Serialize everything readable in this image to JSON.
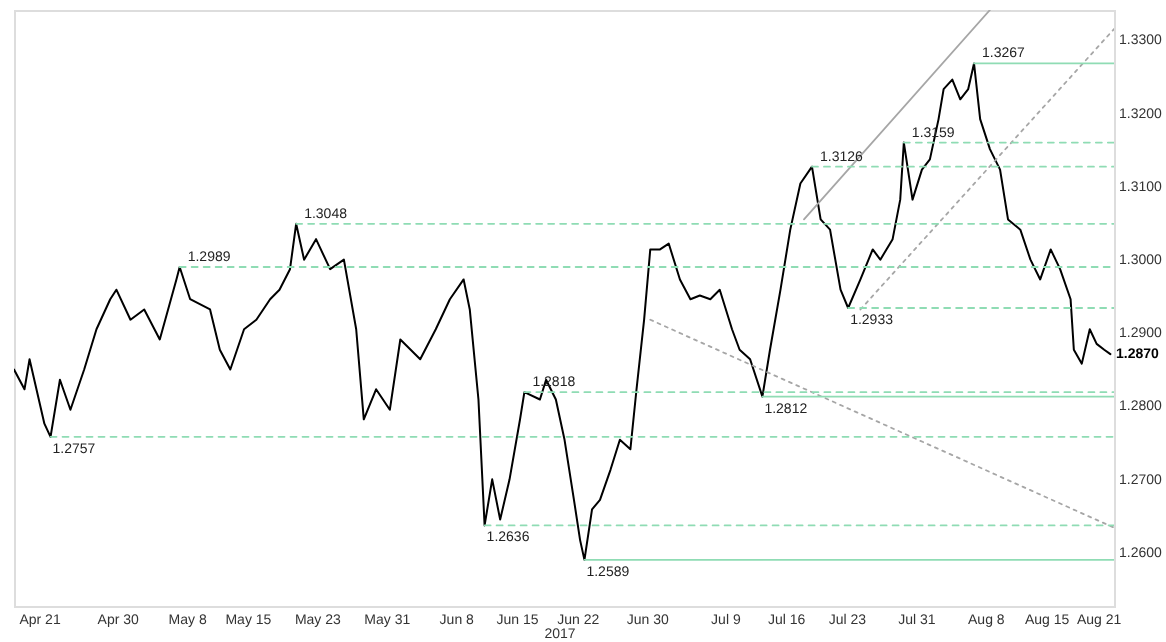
{
  "chart_data": {
    "type": "line",
    "xlim": [
      "2017-04-18T00:00",
      "2017-08-22T17:00"
    ],
    "xticks": [
      {
        "value": "2017-04-21",
        "label": "Apr 21"
      },
      {
        "value": "2017-04-30",
        "label": "Apr 30"
      },
      {
        "value": "2017-05-08",
        "label": "May 8"
      },
      {
        "value": "2017-05-15",
        "label": "May 15"
      },
      {
        "value": "2017-05-23",
        "label": "May 23"
      },
      {
        "value": "2017-05-31",
        "label": "May 31"
      },
      {
        "value": "2017-06-08",
        "label": "Jun 8"
      },
      {
        "value": "2017-06-15",
        "label": "Jun 15"
      },
      {
        "value": "2017-06-22",
        "label": "Jun 22"
      },
      {
        "value": "2017-06-30",
        "label": "Jun 30"
      },
      {
        "value": "2017-07-09",
        "label": "Jul 9"
      },
      {
        "value": "2017-07-16",
        "label": "Jul 16"
      },
      {
        "value": "2017-07-23",
        "label": "Jul 23"
      },
      {
        "value": "2017-07-31",
        "label": "Jul 31"
      },
      {
        "value": "2017-08-08",
        "label": "Aug 8"
      },
      {
        "value": "2017-08-15",
        "label": "Aug 15"
      },
      {
        "value": "2017-08-21",
        "label": "Aug 21"
      }
    ],
    "ylim": [
      1.2526,
      1.334
    ],
    "yticks": [
      {
        "value": 1.26,
        "label": "1.2600"
      },
      {
        "value": 1.27,
        "label": "1.2700"
      },
      {
        "value": 1.28,
        "label": "1.2800"
      },
      {
        "value": 1.29,
        "label": "1.2900"
      },
      {
        "value": 1.3,
        "label": "1.3000"
      },
      {
        "value": 1.31,
        "label": "1.3100"
      },
      {
        "value": 1.32,
        "label": "1.3200"
      },
      {
        "value": 1.33,
        "label": "1.3300"
      }
    ],
    "grid": false,
    "series": [
      {
        "color": "#000000",
        "line_style": "solid",
        "x": [
          "2017-04-18T00:00",
          "2017-04-19T05:00",
          "2017-04-19T19:00",
          "2017-04-21T12:00",
          "2017-04-22T05:00",
          "2017-04-23T07:00",
          "2017-04-24T12:00",
          "2017-04-26T02:00",
          "2017-04-27T12:00",
          "2017-04-29T02:00",
          "2017-04-29T19:00",
          "2017-05-01T10:00",
          "2017-05-03T00:00",
          "2017-05-04T19:00",
          "2017-05-06T17:00",
          "2017-05-07T02:00",
          "2017-05-08T07:00",
          "2017-05-10T14:00",
          "2017-05-11T17:00",
          "2017-05-12T22:00",
          "2017-05-14T12:00",
          "2017-05-15T22:00",
          "2017-05-17T12:00",
          "2017-05-18T14:00",
          "2017-05-19T19:00",
          "2017-05-20T12:00",
          "2017-05-21T10:00",
          "2017-05-22T19:00",
          "2017-05-24T10:00",
          "2017-05-26T00:00",
          "2017-05-27T10:00",
          "2017-05-28T07:00",
          "2017-05-29T17:00",
          "2017-05-31T07:00",
          "2017-06-01T12:00",
          "2017-06-03T19:00",
          "2017-06-05T14:00",
          "2017-06-07T05:00",
          "2017-06-08T19:00",
          "2017-06-09T12:00",
          "2017-06-10T12:00",
          "2017-06-11T05:00",
          "2017-06-12T02:00",
          "2017-06-13T00:00",
          "2017-06-14T02:00",
          "2017-06-15T07:00",
          "2017-06-15T19:00",
          "2017-06-17T14:00",
          "2017-06-18T07:00",
          "2017-06-19T10:00",
          "2017-06-20T10:00",
          "2017-06-21T12:00",
          "2017-06-22T05:00",
          "2017-06-22T17:00",
          "2017-06-23T14:00",
          "2017-06-24T12:00",
          "2017-06-25T17:00",
          "2017-06-26T19:00",
          "2017-06-28T00:00",
          "2017-06-28T17:00",
          "2017-06-29T14:00",
          "2017-06-30T07:00",
          "2017-07-01T10:00",
          "2017-07-02T10:00",
          "2017-07-03T17:00",
          "2017-07-04T22:00",
          "2017-07-06T00:00",
          "2017-07-07T05:00",
          "2017-07-08T07:00",
          "2017-07-09T17:00",
          "2017-07-10T14:00",
          "2017-07-11T19:00",
          "2017-07-13T05:00",
          "2017-07-14T02:00",
          "2017-07-15T07:00",
          "2017-07-16T10:00",
          "2017-07-17T14:00",
          "2017-07-18T22:00",
          "2017-07-19T22:00",
          "2017-07-21T00:00",
          "2017-07-22T05:00",
          "2017-07-23T02:00",
          "2017-07-24T12:00",
          "2017-07-25T22:00",
          "2017-07-26T19:00",
          "2017-07-28T05:00",
          "2017-07-29T02:00",
          "2017-07-29T12:00",
          "2017-07-30T12:00",
          "2017-07-31T14:00",
          "2017-08-01T12:00",
          "2017-08-02T12:00",
          "2017-08-03T02:00",
          "2017-08-04T02:00",
          "2017-08-05T00:00",
          "2017-08-05T22:00",
          "2017-08-06T14:00",
          "2017-08-07T07:00",
          "2017-08-08T10:00",
          "2017-08-09T14:00",
          "2017-08-10T12:00",
          "2017-08-11T22:00",
          "2017-08-13T02:00",
          "2017-08-14T05:00",
          "2017-08-15T10:00",
          "2017-08-16T12:00",
          "2017-08-17T17:00",
          "2017-08-18T02:00",
          "2017-08-19T00:00",
          "2017-08-19T22:00",
          "2017-08-20T17:00",
          "2017-08-21T14:00",
          "2017-08-22T07:00"
        ],
        "values": [
          1.2849,
          1.2822,
          1.2863,
          1.2775,
          1.2757,
          1.2835,
          1.2794,
          1.2849,
          1.2904,
          1.2945,
          1.2958,
          1.2917,
          1.2931,
          1.289,
          1.2972,
          1.2989,
          1.2945,
          1.2931,
          1.2876,
          1.2849,
          1.2904,
          1.2917,
          1.2945,
          1.2958,
          1.2986,
          1.3048,
          1.2999,
          1.3027,
          1.2986,
          1.2999,
          1.2904,
          1.2781,
          1.2822,
          1.2794,
          1.289,
          1.2863,
          1.2904,
          1.2945,
          1.2972,
          1.2931,
          1.2808,
          1.2636,
          1.2699,
          1.2644,
          1.2699,
          1.2781,
          1.2818,
          1.2808,
          1.2835,
          1.2808,
          1.2753,
          1.2671,
          1.2616,
          1.2589,
          1.2658,
          1.2671,
          1.2712,
          1.2753,
          1.274,
          1.2822,
          1.2917,
          1.3013,
          1.3013,
          1.3021,
          1.2972,
          1.2945,
          1.295,
          1.2945,
          1.2958,
          1.2904,
          1.2876,
          1.2863,
          1.2812,
          1.2876,
          1.2958,
          1.304,
          1.3103,
          1.3126,
          1.3054,
          1.304,
          1.2958,
          1.2933,
          1.2972,
          1.3013,
          1.2999,
          1.3027,
          1.3081,
          1.3159,
          1.3081,
          1.3122,
          1.3136,
          1.3191,
          1.3232,
          1.3245,
          1.3218,
          1.3232,
          1.3267,
          1.3191,
          1.315,
          1.3122,
          1.3054,
          1.304,
          1.2999,
          1.2972,
          1.3013,
          1.2986,
          1.2945,
          1.2876,
          1.2857,
          1.2904,
          1.2884,
          1.2876,
          1.287
        ]
      },
      {
        "type": "line",
        "color": "#a6a6a6",
        "line_style": "solid",
        "x": [
          "2017-07-18T00:00",
          "2017-08-08T10:00"
        ],
        "values": [
          1.3054,
          1.334
        ]
      },
      {
        "type": "line",
        "color": "#a6a6a6",
        "line_style": "dotted",
        "x": [
          "2017-07-24T12:00",
          "2017-08-22T17:00"
        ],
        "values": [
          1.2931,
          1.3314
        ]
      },
      {
        "type": "line",
        "color": "#a6a6a6",
        "line_style": "dotted",
        "x": [
          "2017-06-30T07:00",
          "2017-08-22T17:00"
        ],
        "values": [
          1.2917,
          1.2633
        ]
      },
      {
        "type": "line",
        "color": "#8fdcb4",
        "line_style": "solid",
        "x": [
          "2017-08-06T14:00",
          "2017-08-22T17:00"
        ],
        "values": [
          1.3267,
          1.3267
        ]
      },
      {
        "type": "line",
        "color": "#8fdcb4",
        "line_style": "dashed",
        "x": [
          "2017-07-29T12:00",
          "2017-08-22T17:00"
        ],
        "values": [
          1.3159,
          1.3159
        ]
      },
      {
        "type": "line",
        "color": "#8fdcb4",
        "line_style": "dashed",
        "x": [
          "2017-07-18T22:00",
          "2017-08-22T17:00"
        ],
        "values": [
          1.3126,
          1.3126
        ]
      },
      {
        "type": "line",
        "color": "#8fdcb4",
        "line_style": "dashed",
        "x": [
          "2017-05-20T12:00",
          "2017-08-22T17:00"
        ],
        "values": [
          1.3048,
          1.3048
        ]
      },
      {
        "type": "line",
        "color": "#8fdcb4",
        "line_style": "dashed",
        "x": [
          "2017-05-07T02:00",
          "2017-08-22T17:00"
        ],
        "values": [
          1.2989,
          1.2989
        ]
      },
      {
        "type": "line",
        "color": "#8fdcb4",
        "line_style": "dashed",
        "x": [
          "2017-07-23T02:00",
          "2017-08-22T17:00"
        ],
        "values": [
          1.2933,
          1.2933
        ]
      },
      {
        "type": "line",
        "color": "#8fdcb4",
        "line_style": "dashed",
        "x": [
          "2017-06-15T19:00",
          "2017-08-22T17:00"
        ],
        "values": [
          1.2818,
          1.2818
        ]
      },
      {
        "type": "line",
        "color": "#8fdcb4",
        "line_style": "solid",
        "x": [
          "2017-07-13T05:00",
          "2017-08-22T17:00"
        ],
        "values": [
          1.2812,
          1.2812
        ]
      },
      {
        "type": "line",
        "color": "#8fdcb4",
        "line_style": "dashed",
        "x": [
          "2017-04-22T05:00",
          "2017-08-22T17:00"
        ],
        "values": [
          1.2757,
          1.2757
        ]
      },
      {
        "type": "line",
        "color": "#8fdcb4",
        "line_style": "dashed",
        "x": [
          "2017-06-11T05:00",
          "2017-08-22T17:00"
        ],
        "values": [
          1.2636,
          1.2636
        ]
      },
      {
        "type": "line",
        "color": "#8fdcb4",
        "line_style": "solid",
        "x": [
          "2017-06-22T17:00",
          "2017-08-22T17:00"
        ],
        "values": [
          1.2589,
          1.2589
        ]
      }
    ],
    "annotations": [
      {
        "text": "1.2757",
        "x": "2017-04-22T05:00",
        "y": 1.2757
      },
      {
        "text": "1.2989",
        "x": "2017-05-07T02:00",
        "y": 1.2989
      },
      {
        "text": "1.3048",
        "x": "2017-05-20T12:00",
        "y": 1.3048
      },
      {
        "text": "1.2636",
        "x": "2017-06-11T05:00",
        "y": 1.2636
      },
      {
        "text": "1.2818",
        "x": "2017-06-15T19:00",
        "y": 1.2818
      },
      {
        "text": "1.2589",
        "x": "2017-06-22T17:00",
        "y": 1.2589
      },
      {
        "text": "1.2812",
        "x": "2017-07-13T05:00",
        "y": 1.2812
      },
      {
        "text": "1.3126",
        "x": "2017-07-18T22:00",
        "y": 1.3126
      },
      {
        "text": "1.2933",
        "x": "2017-07-23T02:00",
        "y": 1.2933
      },
      {
        "text": "1.3159",
        "x": "2017-07-29T12:00",
        "y": 1.3159
      },
      {
        "text": "1.3267",
        "x": "2017-08-06T14:00",
        "y": 1.3267
      },
      {
        "text": "1.2870",
        "x": "2017-08-22T07:00",
        "y": 1.287
      },
      "2017"
    ]
  }
}
